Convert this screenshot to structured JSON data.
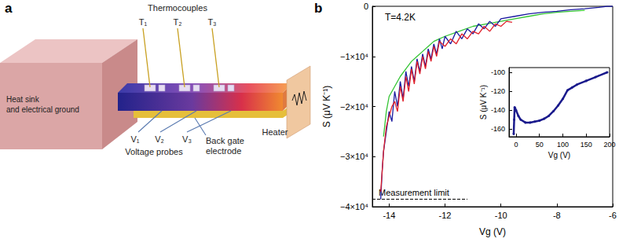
{
  "diagram": {
    "label": "a",
    "heat_sink": [
      "Heat sink",
      "and electrical ground"
    ],
    "thermocouples": {
      "title": "Thermocouples",
      "labels": [
        "T₁",
        "T₂",
        "T₃"
      ]
    },
    "voltage_probes": {
      "title": "Voltage probes",
      "labels": [
        "V₁",
        "V₂",
        "V₃"
      ]
    },
    "back_gate": [
      "Back gate",
      "electrode"
    ],
    "heater": "Heater"
  },
  "chart_data": [
    {
      "type": "line",
      "panel_label": "b",
      "annotation": "T=4.2K",
      "xlabel": "Vg (V)",
      "ylabel": "S (μV K⁻¹)",
      "xlim": [
        -14.6,
        -6
      ],
      "xticks": [
        -14,
        -12,
        -10,
        -8,
        -6
      ],
      "ylim": [
        -40000,
        0
      ],
      "yticks": [
        {
          "value": -40000,
          "label": "−4×10⁴"
        },
        {
          "value": -30000,
          "label": "−3×10⁴"
        },
        {
          "value": -20000,
          "label": "−2×10⁴"
        },
        {
          "value": -10000,
          "label": "−1×10⁴"
        },
        0
      ],
      "grid": false,
      "series": [
        {
          "color": "#33c433",
          "x": [
            -14.2,
            -14.1,
            -14.0,
            -13.8,
            -13.6,
            -13.4,
            -13.2,
            -13.0,
            -12.8,
            -12.6,
            -12.4,
            -12.2,
            -12.0,
            -11.5,
            -11.0,
            -10.5,
            -10.0,
            -9.5,
            -9.0,
            -8.5,
            -8.0,
            -7.5,
            -7.0
          ],
          "values": [
            -26000,
            -21000,
            -18000,
            -16000,
            -14000,
            -12500,
            -11000,
            -10000,
            -9000,
            -8000,
            -7000,
            -6500,
            -6000,
            -5000,
            -4000,
            -3500,
            -3000,
            -2500,
            -2000,
            -1500,
            -1200,
            -1000,
            -800
          ]
        },
        {
          "color": "#1a1aa0",
          "x": [
            -14.3,
            -14.25,
            -14.2,
            -14.1,
            -14.0,
            -13.9,
            -13.8,
            -13.7,
            -13.6,
            -13.5,
            -13.4,
            -13.3,
            -13.2,
            -13.1,
            -13.0,
            -12.9,
            -12.8,
            -12.7,
            -12.6,
            -12.5,
            -12.4,
            -12.3,
            -12.2,
            -12.1,
            -12.0,
            -11.8,
            -11.6,
            -11.4,
            -11.2,
            -11.0,
            -10.8,
            -10.6,
            -10.4,
            -10.2,
            -10.0,
            -9.5,
            -9.0,
            -8.5,
            -8.0,
            -7.5,
            -7.0,
            -6.5,
            -6.2,
            -6.0
          ],
          "values": [
            -38500,
            -33000,
            -29000,
            -25000,
            -21000,
            -23000,
            -17000,
            -20000,
            -15000,
            -18500,
            -13000,
            -16000,
            -12000,
            -15000,
            -10500,
            -13000,
            -9500,
            -12000,
            -8500,
            -10500,
            -7500,
            -9500,
            -6500,
            -8500,
            -6000,
            -7500,
            -5000,
            -6500,
            -4500,
            -5500,
            -3500,
            -4500,
            -3000,
            -4000,
            -2500,
            -2000,
            -1500,
            -1200,
            -1000,
            -700,
            -500,
            -200,
            0,
            0
          ]
        },
        {
          "color": "#e0202a",
          "x": [
            -14.3,
            -14.2,
            -14.1,
            -14.0,
            -13.9,
            -13.8,
            -13.7,
            -13.6,
            -13.5,
            -13.4,
            -13.3,
            -13.2,
            -13.1,
            -13.0,
            -12.9,
            -12.8,
            -12.7,
            -12.6,
            -12.5,
            -12.4,
            -12.3,
            -12.2,
            -12.0,
            -11.8,
            -11.6,
            -11.4,
            -11.2,
            -11.0,
            -10.8,
            -10.6,
            -10.4,
            -10.2,
            -10.0,
            -9.8,
            -9.6
          ],
          "values": [
            -37000,
            -29000,
            -24000,
            -22000,
            -20000,
            -19000,
            -21000,
            -16000,
            -19000,
            -14000,
            -17000,
            -12500,
            -15500,
            -11000,
            -13500,
            -10000,
            -12500,
            -9000,
            -11000,
            -8000,
            -10000,
            -7000,
            -8000,
            -6500,
            -7500,
            -5500,
            -6500,
            -5000,
            -5500,
            -4000,
            -5000,
            -3500,
            -4000,
            -3000,
            -3200
          ]
        }
      ],
      "measurement_limit": {
        "label": "Measurement limit",
        "value": -38500,
        "x": [
          -14.6,
          -11.2
        ]
      }
    },
    {
      "type": "line",
      "xlabel": "Vg (V)",
      "ylabel": "S (μV K⁻¹)",
      "xlim": [
        -15,
        200
      ],
      "xticks": [
        0,
        50,
        100,
        150,
        200
      ],
      "ylim": [
        -168,
        -95
      ],
      "yticks": [
        -160,
        -140,
        -120,
        -100
      ],
      "grid": false,
      "series": [
        {
          "color": "#1a1a8c",
          "marker": "circle",
          "x": [
            -5,
            -4,
            -3,
            -2,
            0,
            5,
            10,
            20,
            30,
            40,
            50,
            60,
            70,
            80,
            90,
            100,
            110,
            120,
            130,
            150,
            170,
            195
          ],
          "values": [
            -165,
            -150,
            -137,
            -138,
            -140,
            -146,
            -150,
            -153,
            -153,
            -152,
            -151,
            -149,
            -146,
            -141,
            -135,
            -128,
            -119,
            -116,
            -113,
            -109,
            -105,
            -100
          ]
        }
      ]
    }
  ]
}
